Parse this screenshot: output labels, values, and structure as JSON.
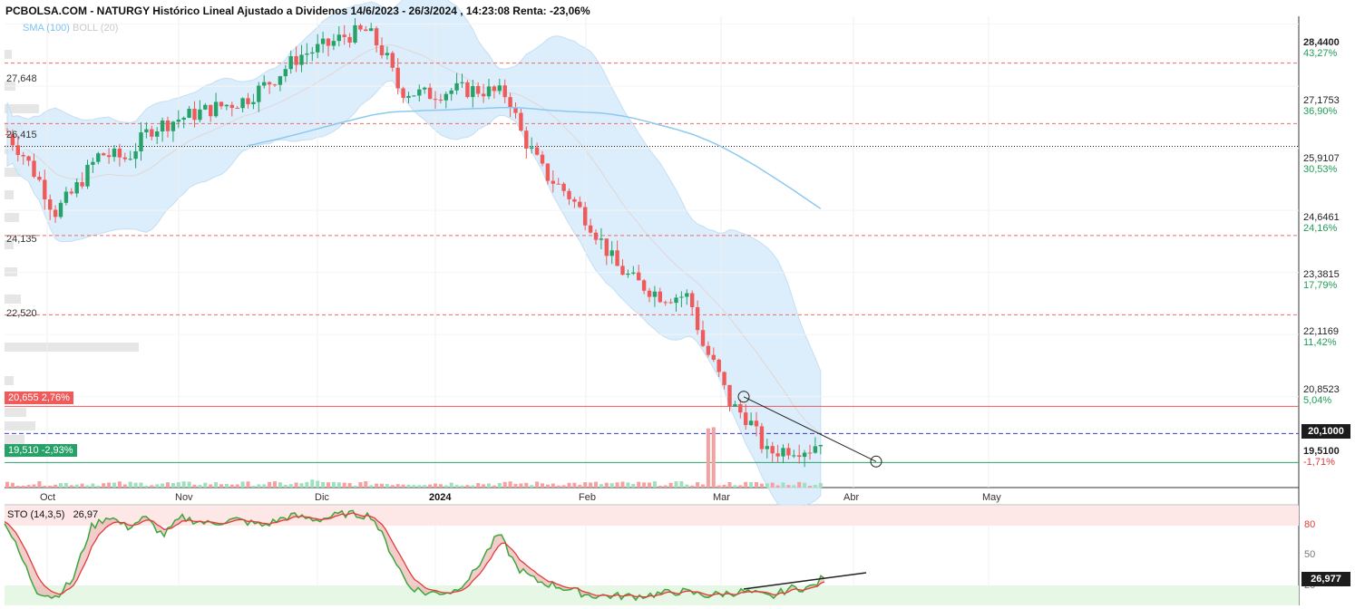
{
  "title": "PCBOLSA.COM - NATURGY Histórico Lineal Ajustado a Dividenos 14/6/2023 - 26/3/2024 , 14:23:08 Renta: -23,06%",
  "legend": {
    "sma": "SMA (100)",
    "boll": "BOLL (20)"
  },
  "stochastic": {
    "label": "STO (14,3,5)",
    "value": "26,97",
    "tag": "26,977",
    "levels": [
      "80",
      "50",
      "20"
    ]
  },
  "colors": {
    "up": "#26a269",
    "down": "#ef5a5a",
    "sma": "#8cc9f0",
    "bollinger_band": "#d6ebfa"
  },
  "horizontal_levels": [
    {
      "label": "27,648",
      "value": 27.648,
      "style": "dashed-red"
    },
    {
      "label": "26,415",
      "value": 26.415,
      "style": "dashed-red"
    },
    {
      "label": "24,135",
      "value": 24.135,
      "style": "dashed-red"
    },
    {
      "label": "22,520",
      "value": 22.52,
      "style": "dashed-red"
    }
  ],
  "flags": [
    {
      "label": "20,655  2,76%",
      "value": 20.655,
      "color": "red"
    },
    {
      "label": "19,510  -2,93%",
      "value": 19.51,
      "color": "green"
    }
  ],
  "current_price": {
    "label": "20,1000",
    "value": 20.1
  },
  "price_axis": [
    {
      "price": "28,4400",
      "pct": "43,27%"
    },
    {
      "price": "27,1753",
      "pct": "36,90%"
    },
    {
      "price": "25,9107",
      "pct": "30,53%"
    },
    {
      "price": "24,6461",
      "pct": "24,16%"
    },
    {
      "price": "23,3815",
      "pct": "17,79%"
    },
    {
      "price": "22,1169",
      "pct": "11,42%"
    },
    {
      "price": "20,8523",
      "pct": "5,04%"
    },
    {
      "price": "19,5100",
      "pct": "-1,71%"
    }
  ],
  "months": [
    "Oct",
    "Nov",
    "Dic",
    "2024",
    "Feb",
    "Mar",
    "Abr",
    "May"
  ],
  "chart_data": {
    "type": "candlestick",
    "ylim": [
      19.0,
      28.6
    ],
    "series": [
      {
        "name": "NATURGY",
        "approx_closes": [
          26.3,
          25.9,
          25.5,
          25.0,
          24.7,
          25.2,
          25.6,
          25.9,
          26.2,
          26.4,
          26.5,
          26.6,
          26.8,
          26.9,
          27.0,
          27.2,
          27.5,
          27.8,
          28.1,
          28.3,
          27.4,
          27.0,
          27.1,
          27.0,
          27.1,
          27.2,
          26.4,
          25.7,
          25.3,
          24.6,
          23.9,
          23.4,
          23.3,
          23.2,
          22.6,
          22.0,
          21.0,
          20.6,
          20.2,
          19.8,
          19.9,
          19.9,
          20.1
        ]
      }
    ],
    "support_resistance": [
      27.648,
      26.415,
      24.135,
      22.52,
      20.655,
      19.51
    ],
    "current": 20.1,
    "stochastic_ylim": [
      0,
      100
    ],
    "stochastic_levels": [
      80,
      50,
      20
    ],
    "stochastic_last": 26.97
  }
}
